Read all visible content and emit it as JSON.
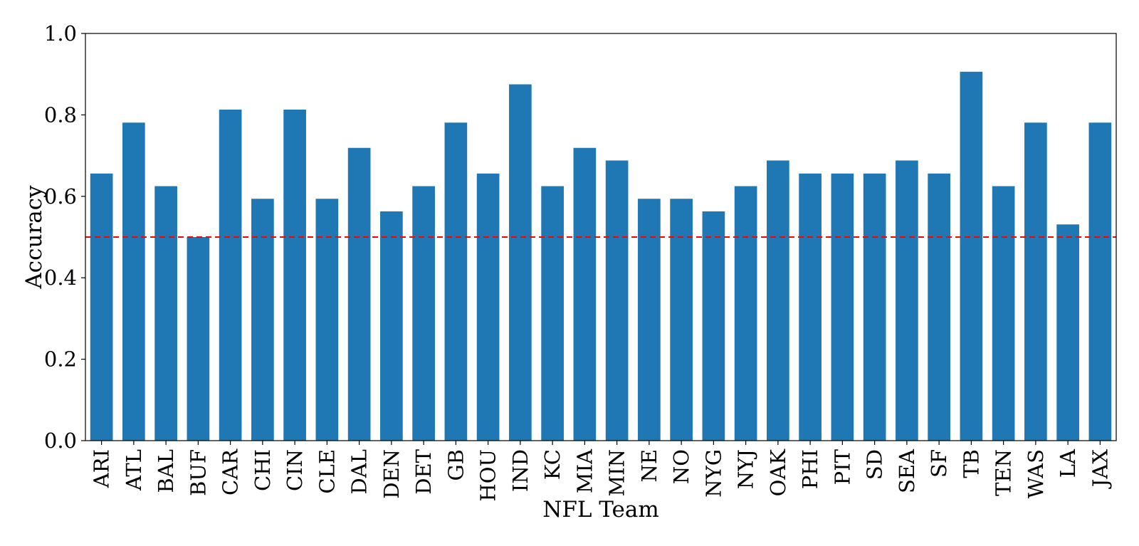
{
  "chart_data": {
    "type": "bar",
    "title": "",
    "xlabel": "NFL Team",
    "ylabel": "Accuracy",
    "ylim": [
      0.0,
      1.0
    ],
    "yticks": [
      0.0,
      0.2,
      0.4,
      0.6,
      0.8,
      1.0
    ],
    "ytick_labels": [
      "0.0",
      "0.2",
      "0.4",
      "0.6",
      "0.8",
      "1.0"
    ],
    "grid": false,
    "legend": "none",
    "bar_color": "#1f77b4",
    "categories": [
      "ARI",
      "ATL",
      "BAL",
      "BUF",
      "CAR",
      "CHI",
      "CIN",
      "CLE",
      "DAL",
      "DEN",
      "DET",
      "GB",
      "HOU",
      "IND",
      "KC",
      "MIA",
      "MIN",
      "NE",
      "NO",
      "NYG",
      "NYJ",
      "OAK",
      "PHI",
      "PIT",
      "SD",
      "SEA",
      "SF",
      "TB",
      "TEN",
      "WAS",
      "LA",
      "JAX"
    ],
    "values": [
      0.656,
      0.781,
      0.625,
      0.5,
      0.813,
      0.594,
      0.813,
      0.594,
      0.719,
      0.563,
      0.625,
      0.781,
      0.656,
      0.875,
      0.625,
      0.719,
      0.688,
      0.594,
      0.594,
      0.563,
      0.625,
      0.688,
      0.656,
      0.656,
      0.656,
      0.688,
      0.656,
      0.906,
      0.625,
      0.781,
      0.531,
      0.781
    ],
    "reference_line": {
      "y": 0.5,
      "color": "#ff0000",
      "style": "dashed"
    }
  }
}
